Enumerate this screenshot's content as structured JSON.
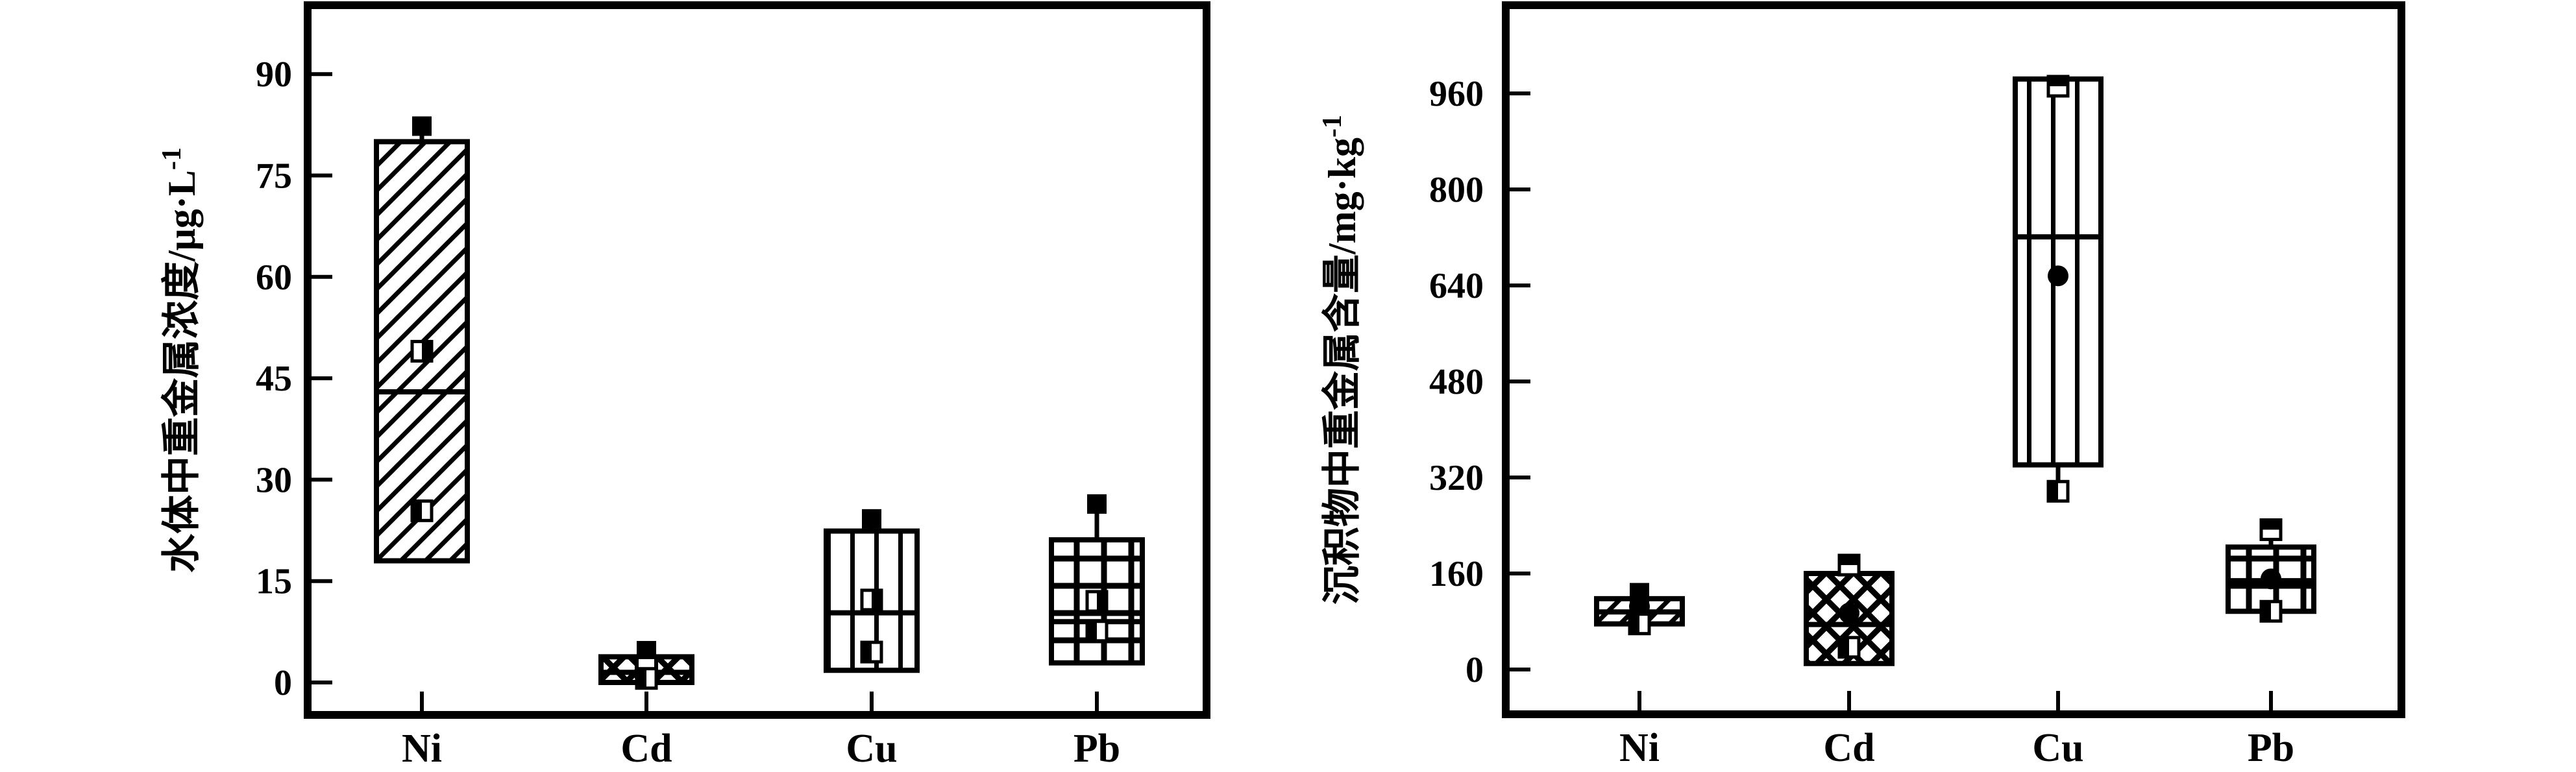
{
  "figure_colors": {
    "ink": "#000000",
    "paper": "#ffffff"
  },
  "chart_data": [
    {
      "type": "box",
      "title": "",
      "xlabel": "",
      "ylabel": "水体中重金属浓度/μg·L⁻¹",
      "ylabel_main": "水体中重金属浓度/μg·L",
      "ylabel_sup": "-1",
      "legend": "none",
      "grid": false,
      "categories": [
        "Ni",
        "Cd",
        "Cu",
        "Pb"
      ],
      "yticks": [
        0,
        15,
        30,
        45,
        60,
        75,
        90
      ],
      "ylim": [
        -5,
        100
      ],
      "boxes": [
        {
          "category": "Ni",
          "pattern": "diagonal",
          "q1": 18,
          "q3": 80,
          "median": 43,
          "whiskers": [
            [
              80,
              81.5
            ],
            [
              25.4,
              18
            ]
          ],
          "markers": [
            {
              "value": 82.3,
              "shape": "square-filled"
            },
            {
              "value": 49,
              "shape": "square-half-right"
            },
            {
              "value": 25.4,
              "shape": "square-half-left"
            }
          ]
        },
        {
          "category": "Cd",
          "pattern": "cross",
          "q1": 0,
          "q3": 3.8,
          "median": 1.5,
          "whiskers": [
            [
              3.8,
              4.4
            ]
          ],
          "markers": [
            {
              "value": 4.7,
              "shape": "square-filled"
            },
            {
              "value": 2.3,
              "shape": "square-open"
            },
            {
              "value": 0.6,
              "shape": "square-half-left"
            }
          ]
        },
        {
          "category": "Cu",
          "pattern": "vertical",
          "q1": 1.8,
          "q3": 22.4,
          "median": 10.3,
          "whiskers": [
            [
              22.4,
              23.6
            ],
            [
              4.5,
              1.8
            ]
          ],
          "markers": [
            {
              "value": 24.2,
              "shape": "square-filled"
            },
            {
              "value": 12.2,
              "shape": "square-half-right"
            },
            {
              "value": 4.5,
              "shape": "square-half-left"
            }
          ]
        },
        {
          "category": "Pb",
          "pattern": "grid",
          "q1": 2.9,
          "q3": 21.1,
          "median": 9,
          "whiskers": [
            [
              21.1,
              26.0
            ],
            [
              7.6,
              2.9
            ]
          ],
          "markers": [
            {
              "value": 26.4,
              "shape": "square-filled"
            },
            {
              "value": 12.0,
              "shape": "square-half-right"
            },
            {
              "value": 7.6,
              "shape": "square-half-left"
            }
          ]
        }
      ]
    },
    {
      "type": "box",
      "title": "",
      "xlabel": "",
      "ylabel": "沉积物中重金属含量/mg·kg⁻¹",
      "ylabel_main": "沉积物中重金属含量/mg·kg",
      "ylabel_sup": "-1",
      "legend": "none",
      "grid": false,
      "categories": [
        "Ni",
        "Cd",
        "Cu",
        "Pb"
      ],
      "yticks": [
        0,
        160,
        320,
        480,
        640,
        800,
        960
      ],
      "ylim": [
        -75,
        1105
      ],
      "boxes": [
        {
          "category": "Ni",
          "pattern": "diagonal",
          "q1": 76,
          "q3": 118,
          "median": 96,
          "whiskers": [],
          "markers": [
            {
              "value": 128,
              "shape": "square-filled"
            },
            {
              "value": 105,
              "shape": "circle-filled"
            },
            {
              "value": 76,
              "shape": "square-half-left"
            }
          ]
        },
        {
          "category": "Cd",
          "pattern": "cross",
          "q1": 10,
          "q3": 160,
          "median": 75,
          "whiskers": [
            [
              160,
              171
            ],
            [
              37,
              10
            ]
          ],
          "markers": [
            {
              "value": 174,
              "shape": "square-half-top"
            },
            {
              "value": 94,
              "shape": "circle-filled"
            },
            {
              "value": 37,
              "shape": "square-half-left"
            }
          ]
        },
        {
          "category": "Cu",
          "pattern": "vertical",
          "q1": 341,
          "q3": 984,
          "median": 721,
          "whiskers": [
            [
              341,
              297
            ]
          ],
          "markers": [
            {
              "value": 972,
              "shape": "square-half-top"
            },
            {
              "value": 656,
              "shape": "circle-filled"
            },
            {
              "value": 297,
              "shape": "square-half-left"
            }
          ]
        },
        {
          "category": "Pb",
          "pattern": "grid",
          "q1": 97,
          "q3": 204,
          "median": 148,
          "whiskers": [
            [
              204,
              230
            ]
          ],
          "markers": [
            {
              "value": 233,
              "shape": "square-half-top"
            },
            {
              "value": 151,
              "shape": "circle-filled"
            },
            {
              "value": 97,
              "shape": "square-half-left"
            }
          ]
        }
      ]
    }
  ]
}
